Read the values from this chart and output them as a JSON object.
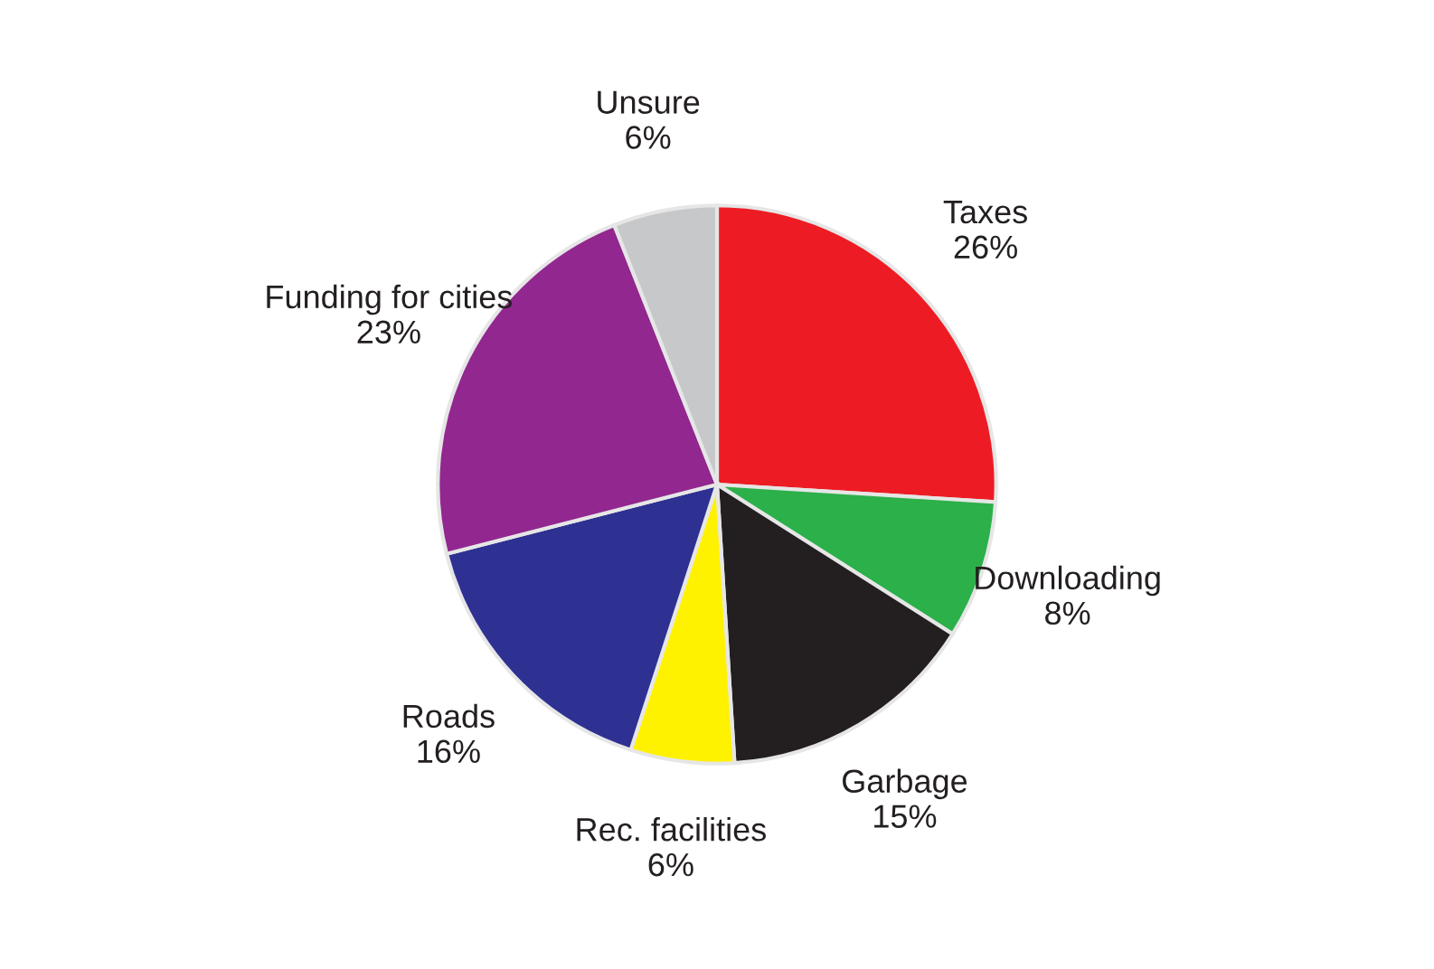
{
  "chart_data": {
    "type": "pie",
    "categories": [
      "Taxes",
      "Downloading",
      "Garbage",
      "Rec. facilities",
      "Roads",
      "Funding for cities",
      "Unsure"
    ],
    "values": [
      26,
      8,
      15,
      6,
      16,
      23,
      6
    ],
    "value_labels": [
      "26%",
      "8%",
      "15%",
      "6%",
      "16%",
      "23%",
      "6%"
    ],
    "colors": [
      "#ed1c24",
      "#2bb04a",
      "#231f20",
      "#fff200",
      "#2e3192",
      "#92278f",
      "#c7c8ca"
    ]
  }
}
